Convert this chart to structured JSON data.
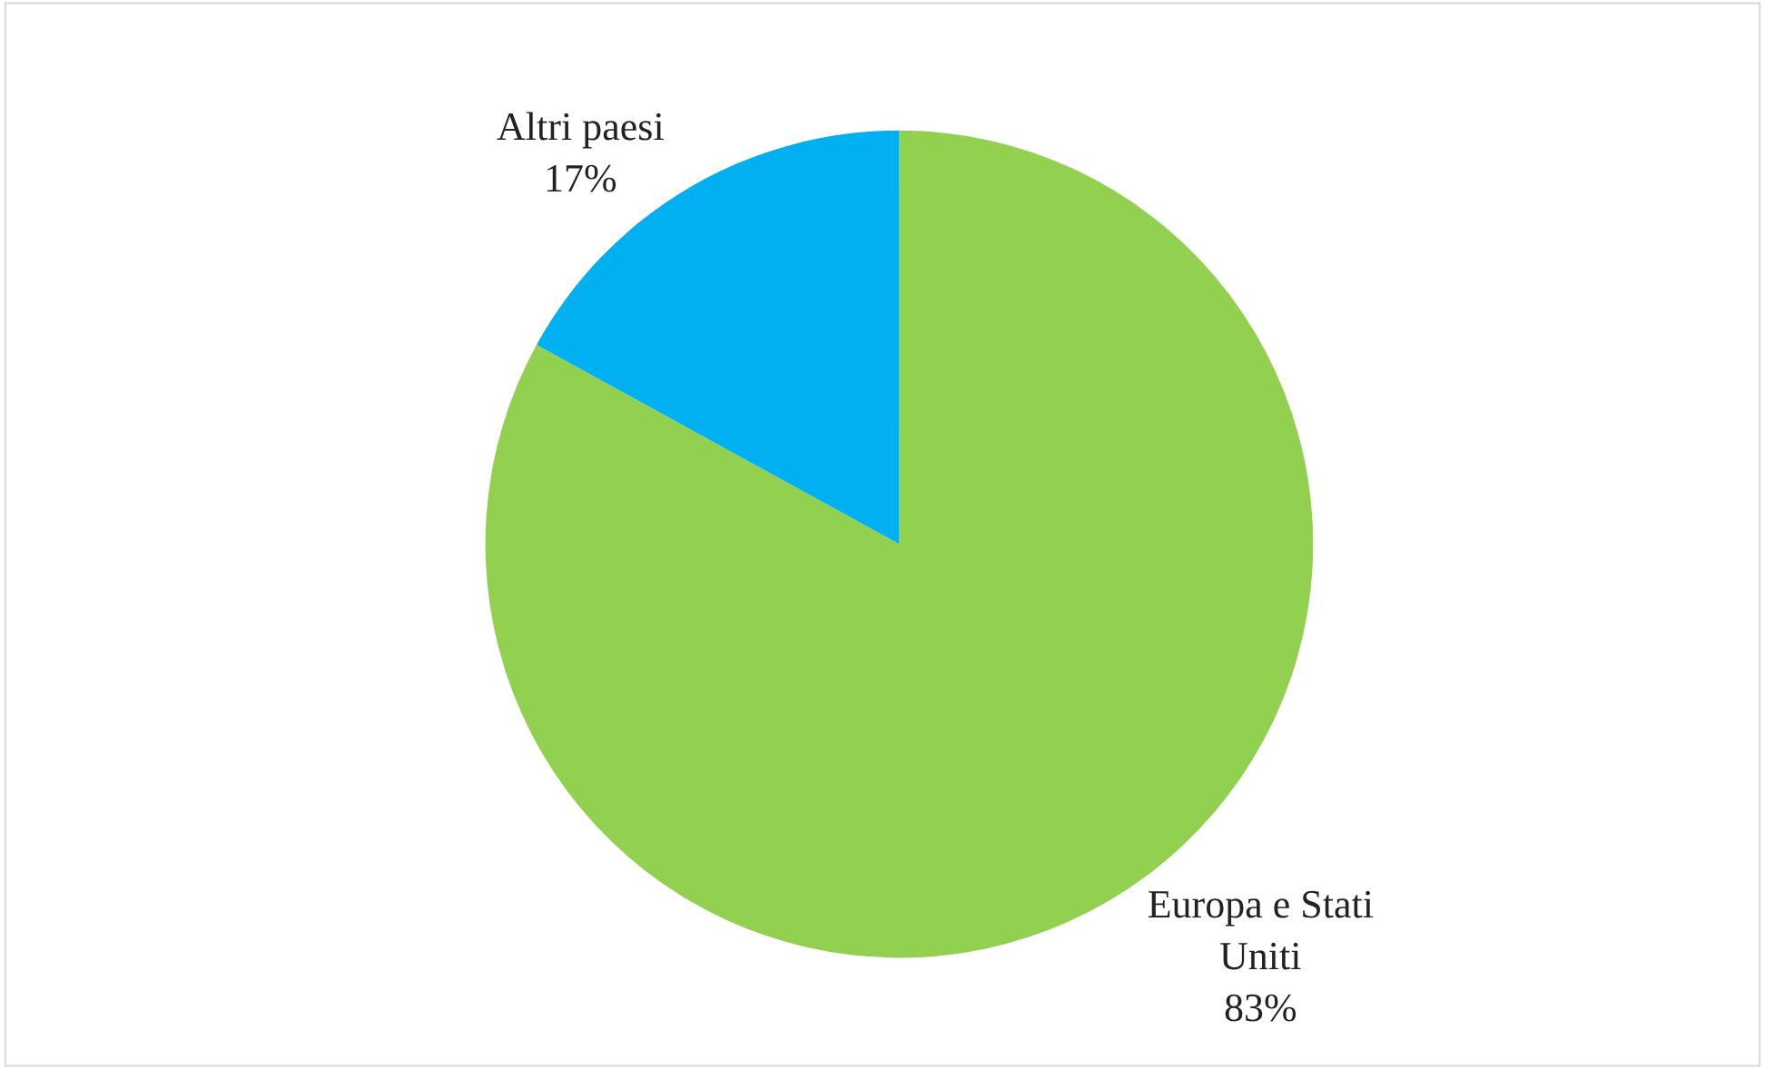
{
  "chart_data": {
    "type": "pie",
    "categories": [
      "Europa e Stati Uniti",
      "Altri paesi"
    ],
    "values": [
      83,
      17
    ],
    "colors": [
      "#92d050",
      "#00b0f0"
    ],
    "value_labels": [
      "83%",
      "17%"
    ],
    "legend": false
  }
}
